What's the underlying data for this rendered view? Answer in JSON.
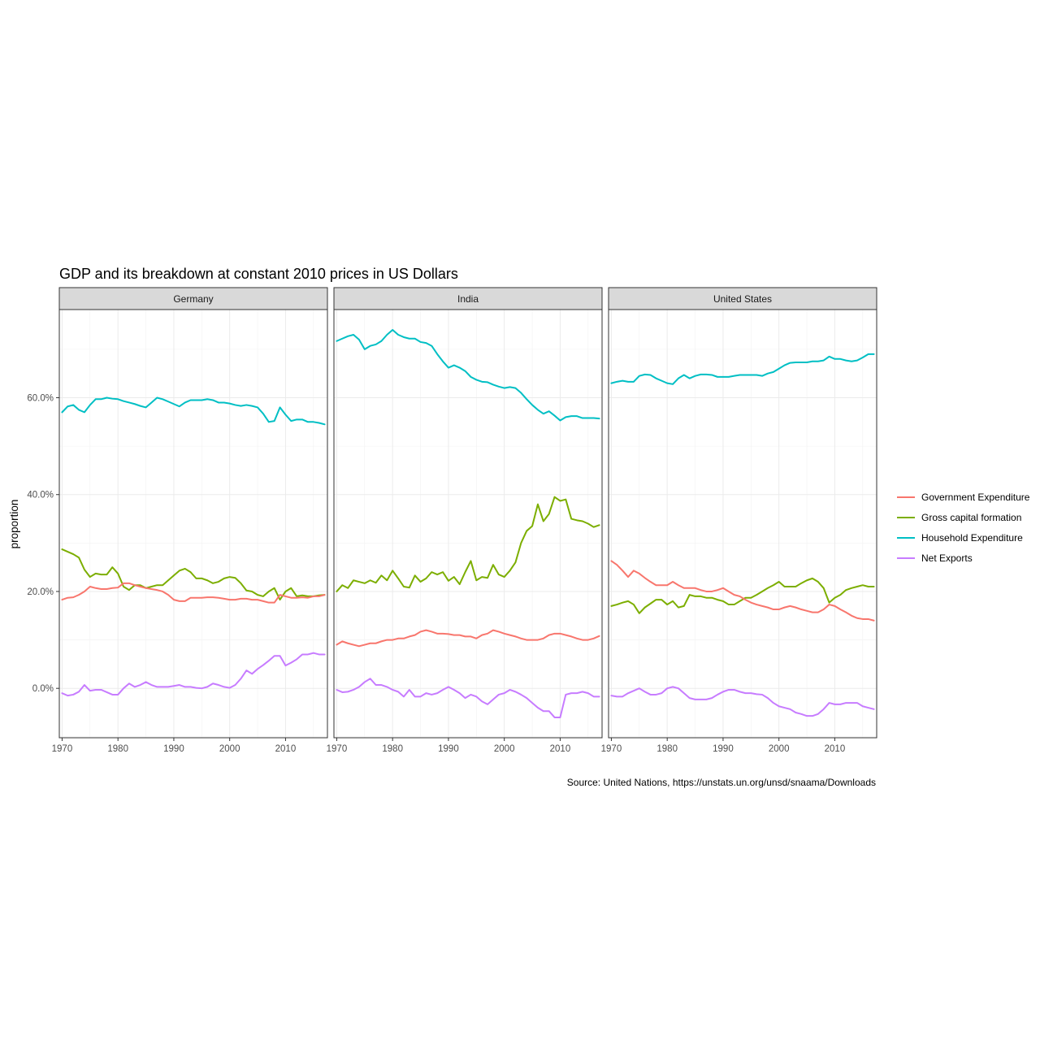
{
  "colors": {
    "Government Expenditure": "#F8766D",
    "Gross capital formation": "#7CAE00",
    "Household Expenditure": "#00BFC4",
    "Net Exports": "#C77CFF"
  },
  "chart_data": {
    "type": "line",
    "title": "GDP and its breakdown at constant 2010 prices in US Dollars",
    "ylabel": "proportion",
    "xlabel": "",
    "caption": "Source: United Nations, https://unstats.un.org/unsd/snaama/Downloads",
    "x": [
      1970,
      1971,
      1972,
      1973,
      1974,
      1975,
      1976,
      1977,
      1978,
      1979,
      1980,
      1981,
      1982,
      1983,
      1984,
      1985,
      1986,
      1987,
      1988,
      1989,
      1990,
      1991,
      1992,
      1993,
      1994,
      1995,
      1996,
      1997,
      1998,
      1999,
      2000,
      2001,
      2002,
      2003,
      2004,
      2005,
      2006,
      2007,
      2008,
      2009,
      2010,
      2011,
      2012,
      2013,
      2014,
      2015,
      2016,
      2017
    ],
    "xlim": [
      1969.5,
      2017.5
    ],
    "ylim": [
      -0.102,
      0.782
    ],
    "y_ticks": [
      0.0,
      0.2,
      0.4,
      0.6
    ],
    "y_tick_labels": [
      "0.0%",
      "20.0%",
      "40.0%",
      "60.0%"
    ],
    "x_ticks": [
      1970,
      1980,
      1990,
      2000,
      2010
    ],
    "x_tick_labels": [
      "1970",
      "1980",
      "1990",
      "2000",
      "2010"
    ],
    "grid": true,
    "legend_position": "right",
    "legend": [
      "Government Expenditure",
      "Gross capital formation",
      "Household Expenditure",
      "Net Exports"
    ],
    "panels": [
      {
        "name": "Germany",
        "series": [
          {
            "name": "Household Expenditure",
            "values": [
              0.57,
              0.582,
              0.585,
              0.575,
              0.57,
              0.585,
              0.597,
              0.597,
              0.6,
              0.598,
              0.597,
              0.593,
              0.59,
              0.587,
              0.583,
              0.58,
              0.59,
              0.6,
              0.597,
              0.592,
              0.587,
              0.582,
              0.59,
              0.595,
              0.595,
              0.595,
              0.597,
              0.595,
              0.59,
              0.59,
              0.588,
              0.585,
              0.583,
              0.585,
              0.583,
              0.58,
              0.567,
              0.55,
              0.552,
              0.58,
              0.565,
              0.552,
              0.555,
              0.555,
              0.55,
              0.55,
              0.548,
              0.545
            ]
          },
          {
            "name": "Gross capital formation",
            "values": [
              0.287,
              0.282,
              0.277,
              0.27,
              0.245,
              0.23,
              0.237,
              0.235,
              0.235,
              0.25,
              0.237,
              0.21,
              0.203,
              0.213,
              0.213,
              0.207,
              0.21,
              0.213,
              0.213,
              0.223,
              0.233,
              0.243,
              0.247,
              0.24,
              0.227,
              0.227,
              0.223,
              0.217,
              0.22,
              0.227,
              0.23,
              0.228,
              0.217,
              0.202,
              0.2,
              0.193,
              0.19,
              0.2,
              0.207,
              0.183,
              0.2,
              0.207,
              0.19,
              0.192,
              0.19,
              0.19,
              0.192,
              0.193
            ]
          },
          {
            "name": "Government Expenditure",
            "values": [
              0.183,
              0.187,
              0.188,
              0.193,
              0.2,
              0.21,
              0.207,
              0.205,
              0.205,
              0.207,
              0.208,
              0.217,
              0.217,
              0.213,
              0.21,
              0.207,
              0.205,
              0.203,
              0.2,
              0.193,
              0.183,
              0.18,
              0.18,
              0.187,
              0.187,
              0.187,
              0.188,
              0.188,
              0.187,
              0.185,
              0.183,
              0.183,
              0.185,
              0.185,
              0.183,
              0.183,
              0.18,
              0.177,
              0.177,
              0.193,
              0.19,
              0.187,
              0.187,
              0.188,
              0.187,
              0.19,
              0.19,
              0.193
            ]
          },
          {
            "name": "Net Exports",
            "values": [
              -0.01,
              -0.015,
              -0.013,
              -0.007,
              0.007,
              -0.005,
              -0.003,
              -0.003,
              -0.008,
              -0.013,
              -0.013,
              0.0,
              0.01,
              0.003,
              0.007,
              0.013,
              0.007,
              0.003,
              0.003,
              0.003,
              0.005,
              0.007,
              0.003,
              0.003,
              0.001,
              0.0,
              0.003,
              0.01,
              0.007,
              0.003,
              0.001,
              0.007,
              0.02,
              0.037,
              0.03,
              0.04,
              0.048,
              0.057,
              0.067,
              0.067,
              0.047,
              0.053,
              0.06,
              0.07,
              0.07,
              0.073,
              0.07,
              0.07
            ]
          }
        ]
      },
      {
        "name": "India",
        "series": [
          {
            "name": "Household Expenditure",
            "values": [
              0.717,
              0.722,
              0.727,
              0.73,
              0.72,
              0.7,
              0.707,
              0.71,
              0.717,
              0.73,
              0.74,
              0.73,
              0.725,
              0.722,
              0.722,
              0.715,
              0.713,
              0.707,
              0.69,
              0.675,
              0.662,
              0.667,
              0.662,
              0.655,
              0.643,
              0.637,
              0.633,
              0.632,
              0.627,
              0.623,
              0.62,
              0.622,
              0.62,
              0.61,
              0.597,
              0.585,
              0.575,
              0.567,
              0.572,
              0.563,
              0.553,
              0.56,
              0.562,
              0.562,
              0.558,
              0.558,
              0.558,
              0.557
            ]
          },
          {
            "name": "Gross capital formation",
            "values": [
              0.2,
              0.213,
              0.207,
              0.223,
              0.22,
              0.217,
              0.223,
              0.218,
              0.233,
              0.223,
              0.243,
              0.227,
              0.21,
              0.208,
              0.233,
              0.22,
              0.227,
              0.24,
              0.235,
              0.24,
              0.222,
              0.23,
              0.215,
              0.24,
              0.263,
              0.223,
              0.23,
              0.228,
              0.255,
              0.235,
              0.23,
              0.243,
              0.26,
              0.3,
              0.325,
              0.335,
              0.38,
              0.345,
              0.36,
              0.395,
              0.387,
              0.39,
              0.35,
              0.347,
              0.345,
              0.34,
              0.333,
              0.337
            ]
          },
          {
            "name": "Government Expenditure",
            "values": [
              0.09,
              0.097,
              0.093,
              0.09,
              0.087,
              0.09,
              0.093,
              0.093,
              0.097,
              0.1,
              0.1,
              0.103,
              0.103,
              0.107,
              0.11,
              0.117,
              0.12,
              0.117,
              0.113,
              0.113,
              0.112,
              0.11,
              0.11,
              0.107,
              0.107,
              0.103,
              0.11,
              0.113,
              0.12,
              0.117,
              0.113,
              0.11,
              0.107,
              0.103,
              0.1,
              0.1,
              0.1,
              0.103,
              0.11,
              0.113,
              0.113,
              0.11,
              0.107,
              0.103,
              0.1,
              0.1,
              0.103,
              0.108
            ]
          },
          {
            "name": "Net Exports",
            "values": [
              -0.003,
              -0.008,
              -0.007,
              -0.003,
              0.003,
              0.013,
              0.02,
              0.007,
              0.007,
              0.003,
              -0.003,
              -0.007,
              -0.017,
              -0.003,
              -0.017,
              -0.017,
              -0.01,
              -0.013,
              -0.01,
              -0.003,
              0.003,
              -0.003,
              -0.01,
              -0.02,
              -0.013,
              -0.017,
              -0.027,
              -0.033,
              -0.023,
              -0.013,
              -0.01,
              -0.003,
              -0.007,
              -0.013,
              -0.02,
              -0.03,
              -0.04,
              -0.047,
              -0.047,
              -0.06,
              -0.06,
              -0.013,
              -0.01,
              -0.01,
              -0.007,
              -0.01,
              -0.017,
              -0.017
            ]
          }
        ]
      },
      {
        "name": "United States",
        "series": [
          {
            "name": "Household Expenditure",
            "values": [
              0.63,
              0.633,
              0.635,
              0.633,
              0.633,
              0.645,
              0.648,
              0.647,
              0.64,
              0.635,
              0.63,
              0.628,
              0.64,
              0.647,
              0.64,
              0.645,
              0.648,
              0.648,
              0.647,
              0.643,
              0.643,
              0.643,
              0.645,
              0.647,
              0.647,
              0.647,
              0.647,
              0.645,
              0.65,
              0.653,
              0.66,
              0.667,
              0.672,
              0.673,
              0.673,
              0.673,
              0.675,
              0.675,
              0.677,
              0.685,
              0.68,
              0.68,
              0.677,
              0.675,
              0.677,
              0.683,
              0.69,
              0.69
            ]
          },
          {
            "name": "Gross capital formation",
            "values": [
              0.17,
              0.173,
              0.177,
              0.18,
              0.173,
              0.155,
              0.167,
              0.175,
              0.183,
              0.183,
              0.173,
              0.18,
              0.167,
              0.17,
              0.193,
              0.19,
              0.19,
              0.187,
              0.187,
              0.183,
              0.18,
              0.173,
              0.173,
              0.18,
              0.187,
              0.187,
              0.193,
              0.2,
              0.207,
              0.213,
              0.22,
              0.21,
              0.21,
              0.21,
              0.217,
              0.223,
              0.227,
              0.22,
              0.207,
              0.177,
              0.187,
              0.193,
              0.203,
              0.207,
              0.21,
              0.213,
              0.21,
              0.21
            ]
          },
          {
            "name": "Government Expenditure",
            "values": [
              0.263,
              0.255,
              0.243,
              0.23,
              0.243,
              0.237,
              0.228,
              0.22,
              0.213,
              0.213,
              0.213,
              0.22,
              0.213,
              0.207,
              0.207,
              0.207,
              0.203,
              0.2,
              0.2,
              0.203,
              0.207,
              0.2,
              0.193,
              0.19,
              0.183,
              0.177,
              0.173,
              0.17,
              0.167,
              0.163,
              0.163,
              0.167,
              0.17,
              0.167,
              0.163,
              0.16,
              0.157,
              0.157,
              0.163,
              0.173,
              0.17,
              0.163,
              0.157,
              0.15,
              0.145,
              0.143,
              0.143,
              0.14
            ]
          },
          {
            "name": "Net Exports",
            "values": [
              -0.015,
              -0.017,
              -0.017,
              -0.01,
              -0.005,
              0.0,
              -0.007,
              -0.013,
              -0.013,
              -0.01,
              0.0,
              0.003,
              0.0,
              -0.01,
              -0.02,
              -0.023,
              -0.023,
              -0.023,
              -0.02,
              -0.013,
              -0.007,
              -0.003,
              -0.003,
              -0.007,
              -0.01,
              -0.01,
              -0.012,
              -0.013,
              -0.02,
              -0.03,
              -0.037,
              -0.04,
              -0.043,
              -0.05,
              -0.053,
              -0.057,
              -0.057,
              -0.053,
              -0.043,
              -0.03,
              -0.033,
              -0.033,
              -0.03,
              -0.03,
              -0.03,
              -0.037,
              -0.04,
              -0.043
            ]
          }
        ]
      }
    ]
  }
}
